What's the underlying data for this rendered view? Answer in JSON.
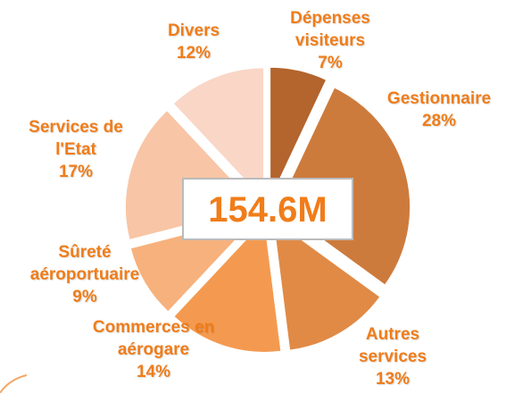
{
  "chart_data": {
    "type": "pie",
    "center_label": "154.6M",
    "categories": [
      "Dépenses visiteurs",
      "Gestionnaire",
      "Autres services",
      "Commerces en aérogare",
      "Sûreté aéroportuaire",
      "Services de l'Etat",
      "Divers"
    ],
    "values": [
      7,
      28,
      13,
      14,
      9,
      17,
      12
    ],
    "value_labels": [
      "7%",
      "28%",
      "13%",
      "14%",
      "9%",
      "17%",
      "12%"
    ],
    "colors": [
      "#b4642d",
      "#cd7b3d",
      "#e08a46",
      "#f49a50",
      "#f7b17c",
      "#f8c5a6",
      "#f9d6c6"
    ]
  }
}
